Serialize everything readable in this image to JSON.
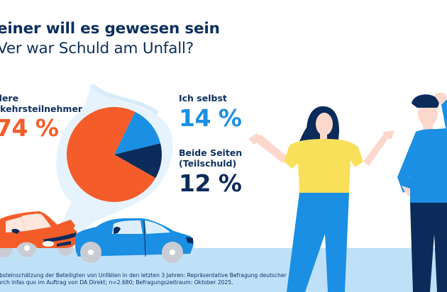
{
  "header": {
    "title_line1": "einer will es gewesen sein",
    "title_line2": "Ver war Schuld am Unfall?"
  },
  "colors": {
    "orange": "#f45d2a",
    "light_blue": "#1a8fe3",
    "dark_blue": "#0b2b5b",
    "ground": "#bfe1f8"
  },
  "chart_data": {
    "type": "pie",
    "title": "Wer war Schuld am Unfall?",
    "categories": [
      "Andere Verkehrsteilnehmer",
      "Ich selbst",
      "Beide Seiten (Teilschuld)"
    ],
    "values": [
      74,
      14,
      12
    ],
    "unit": "%",
    "series_colors": [
      "#f45d2a",
      "#1a8fe3",
      "#0b2b5b"
    ],
    "labels": [
      {
        "line1": "dere",
        "line2": "rkehrsteilnehmer",
        "value_text": "74 %"
      },
      {
        "line1": "Ich selbst",
        "line2": "",
        "value_text": "14 %"
      },
      {
        "line1": "Beide Seiten",
        "line2": "(Teilschuld)",
        "value_text": "12 %"
      }
    ]
  },
  "footnote": {
    "line1": "lbsteinschätzung der Beteiligten von Unfällen in den letzten 3 Jahren: Repräsentative Befragung deutscher",
    "line2": "urch infas quo im Auftrag von DA Direkt; n=2.680; Befragungszeitraum: Oktober 2025."
  }
}
